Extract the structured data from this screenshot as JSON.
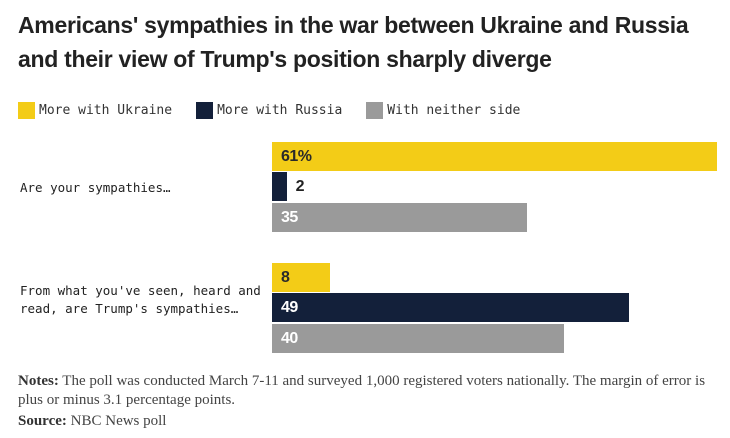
{
  "title": "Americans' sympathies in the war between Ukraine and Russia and their view of Trump's position sharply diverge",
  "chart_data": {
    "type": "bar",
    "orientation": "horizontal",
    "title": "Americans' sympathies in the war between Ukraine and Russia and their view of Trump's position sharply diverge",
    "categories": [
      "Are your sympathies…",
      "From what you've seen, heard and read, are Trump's sympathies…"
    ],
    "series": [
      {
        "name": "More with Ukraine",
        "color": "#f3cc17",
        "values": [
          61,
          8
        ],
        "labels": [
          "61%",
          "8"
        ]
      },
      {
        "name": "More with Russia",
        "color": "#13203a",
        "values": [
          2,
          49
        ],
        "labels": [
          "2",
          "49"
        ]
      },
      {
        "name": "With neither side",
        "color": "#9a9a9a",
        "values": [
          35,
          40
        ],
        "labels": [
          "35",
          "40"
        ]
      }
    ],
    "legend": "top-left",
    "grid": false
  },
  "notes": {
    "label": "Notes:",
    "text": " The poll was conducted March 7-11 and surveyed 1,000 registered voters nationally. The margin of error is plus or minus 3.1 percentage points."
  },
  "source": {
    "label": "Source:",
    "text": " NBC News poll"
  }
}
